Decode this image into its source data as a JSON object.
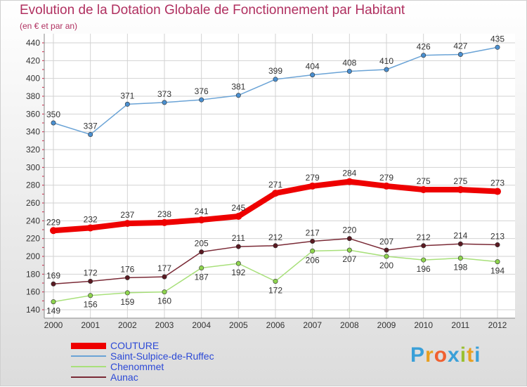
{
  "title": "Evolution de la Dotation Globale de Fonctionnement par Habitant",
  "subtitle": "(en € et par an)",
  "logo": "Proxiti",
  "chart_data": {
    "type": "line",
    "title": "Evolution de la Dotation Globale de Fonctionnement par Habitant",
    "subtitle": "(en € et par an)",
    "xlabel": "",
    "ylabel": "",
    "ylim": [
      140,
      440
    ],
    "yticks": [
      140,
      160,
      180,
      200,
      220,
      240,
      260,
      280,
      300,
      320,
      340,
      360,
      380,
      400,
      420,
      440
    ],
    "x": [
      "2000",
      "2001",
      "2002",
      "2003",
      "2004",
      "2005",
      "2006",
      "2007",
      "2008",
      "2009",
      "2010",
      "2011",
      "2012"
    ],
    "grid": true,
    "legend_position": "bottom-left",
    "series": [
      {
        "name": "COUTURE",
        "color": "#ee0000",
        "values": [
          229,
          232,
          237,
          238,
          241,
          245,
          271,
          279,
          284,
          279,
          275,
          275,
          273
        ]
      },
      {
        "name": "Saint-Sulpice-de-Ruffec",
        "color": "#6aa3d6",
        "marker_color": "#4a8fd0",
        "values": [
          350,
          337,
          371,
          373,
          376,
          381,
          399,
          404,
          408,
          410,
          426,
          427,
          435
        ]
      },
      {
        "name": "Chenommet",
        "color": "#a8e07a",
        "marker_color": "#8ed44e",
        "values": [
          149,
          156,
          159,
          160,
          187,
          192,
          172,
          206,
          207,
          200,
          196,
          198,
          194
        ]
      },
      {
        "name": "Aunac",
        "color": "#7a2a36",
        "marker_color": "#5a1a22",
        "values": [
          169,
          172,
          176,
          177,
          205,
          211,
          212,
          217,
          220,
          207,
          212,
          214,
          213
        ]
      }
    ]
  }
}
